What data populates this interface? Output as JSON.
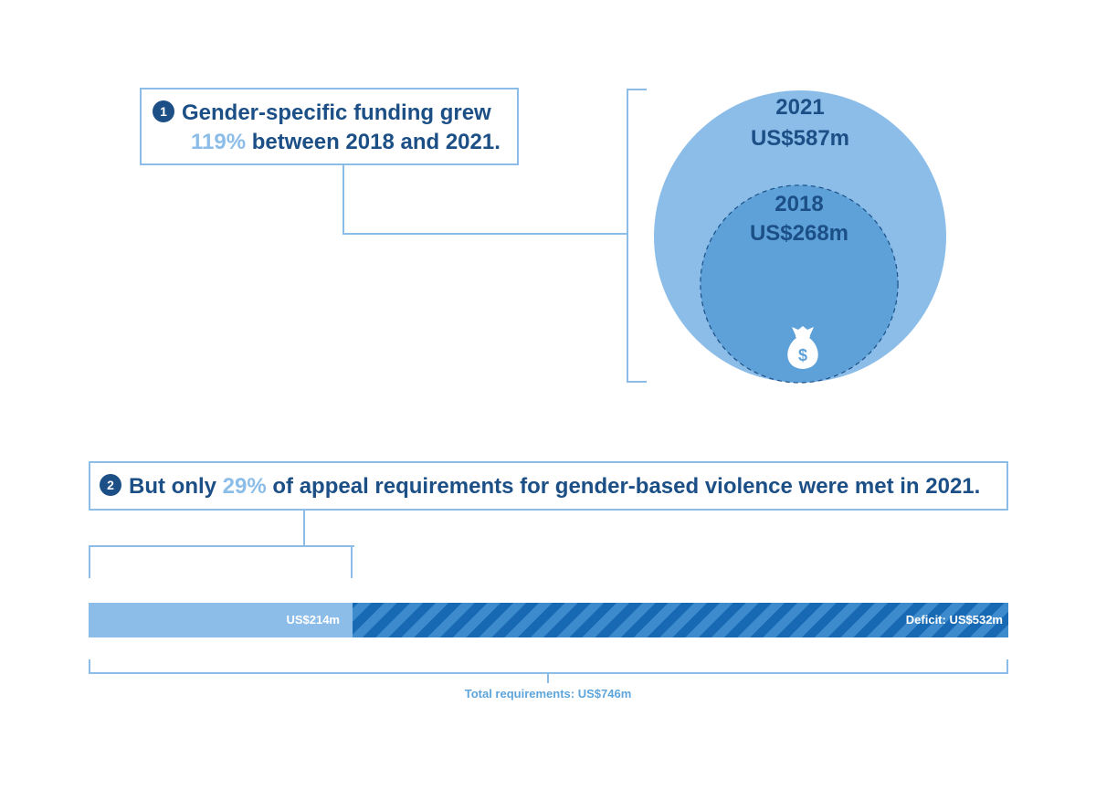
{
  "callout1": {
    "badge": "1",
    "line1": "Gender-specific funding grew",
    "highlight": "119%",
    "line2_rest": "between 2018 and 2021."
  },
  "callout2": {
    "badge": "2",
    "prefix": "But only",
    "highlight": "29%",
    "suffix": "of appeal requirements for gender-based violence were met in 2021."
  },
  "chart_data": [
    {
      "type": "bubble",
      "series": [
        {
          "year": "2021",
          "label": "US$587m",
          "value": 587
        },
        {
          "year": "2018",
          "label": "US$268m",
          "value": 268
        }
      ],
      "icon": "money-bag-icon"
    },
    {
      "type": "bar",
      "orientation": "horizontal",
      "stacked": true,
      "segments": [
        {
          "name": "funded",
          "label": "US$214m",
          "value": 214
        },
        {
          "name": "deficit",
          "label": "Deficit: US$532m",
          "value": 532
        }
      ],
      "total": {
        "label": "Total requirements: US$746m",
        "value": 746
      }
    }
  ],
  "colors": {
    "dark_blue": "#1b4f86",
    "light_blue": "#8cbde8",
    "mid_blue": "#5ea5db",
    "stripe_dark": "#1769b3",
    "stripe_light": "#3d8bcd"
  }
}
